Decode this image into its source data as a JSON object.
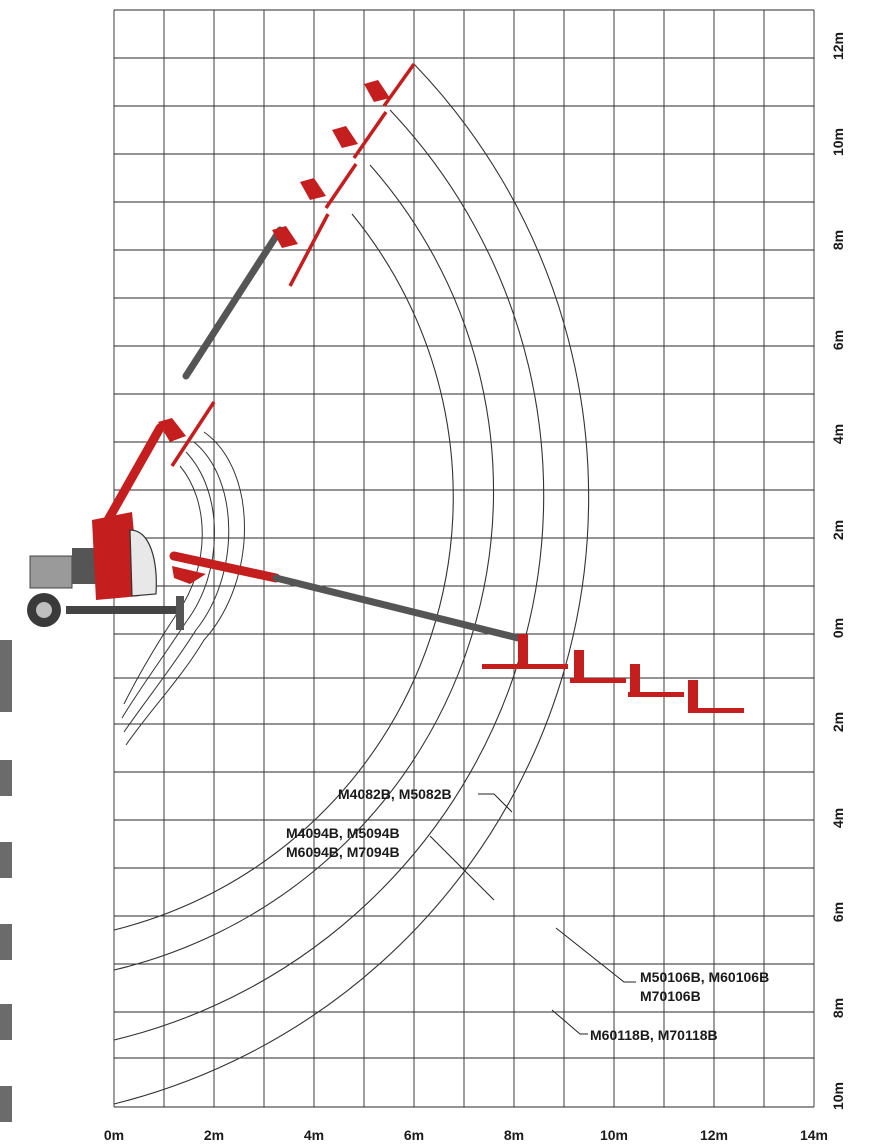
{
  "diagram": {
    "x_axis": {
      "unit": "m",
      "labels": [
        "0m",
        "2m",
        "4m",
        "6m",
        "8m",
        "10m",
        "12m",
        "14m"
      ]
    },
    "y_axis": {
      "unit": "m",
      "labels": [
        "12m",
        "10m",
        "8m",
        "6m",
        "4m",
        "2m",
        "0m",
        "2m",
        "4m",
        "6m",
        "8m",
        "10m"
      ]
    },
    "reach_envelopes": [
      {
        "models": [
          "M4082B, M5082B"
        ]
      },
      {
        "models": [
          "M4094B, M5094B",
          "M6094B, M7094B"
        ]
      },
      {
        "models": [
          "M50106B, M60106B",
          "M70106B"
        ]
      },
      {
        "models": [
          "M60118B, M70118B"
        ]
      }
    ],
    "colors": {
      "machine_red": "#c41e1e",
      "boom_grey": "#555555",
      "grid": "#2a2a2a"
    }
  }
}
